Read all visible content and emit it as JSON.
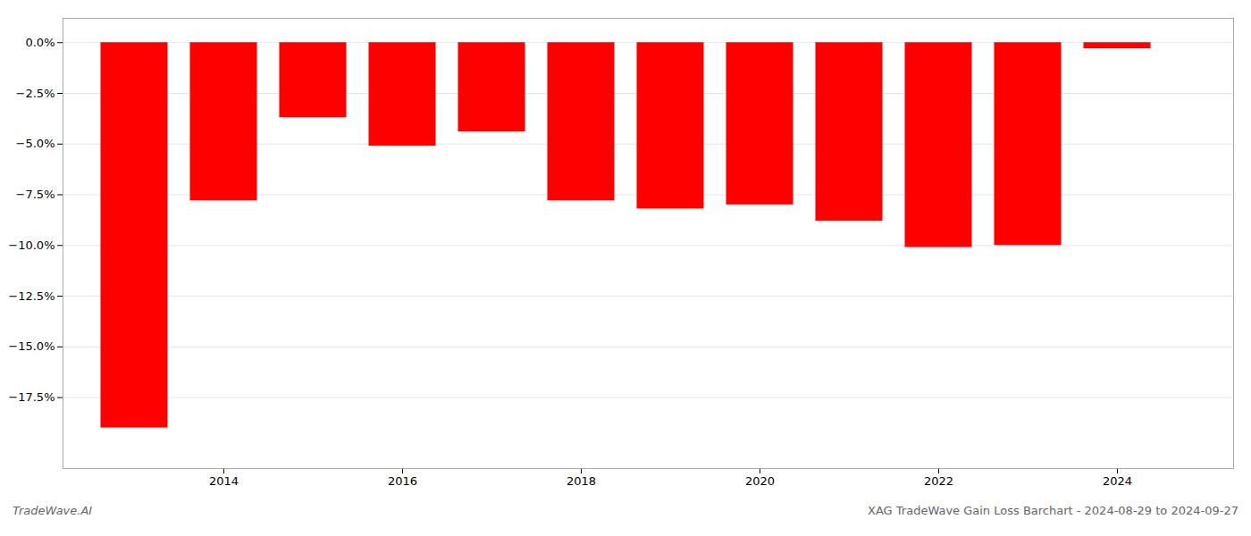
{
  "chart_data": {
    "type": "bar",
    "x": [
      2013,
      2014,
      2015,
      2016,
      2017,
      2018,
      2019,
      2020,
      2021,
      2022,
      2023,
      2024
    ],
    "values": [
      -19.0,
      -7.8,
      -3.7,
      -5.1,
      -4.4,
      -7.8,
      -8.2,
      -8.0,
      -8.8,
      -10.1,
      -10.0,
      -0.3
    ],
    "color": "#ff0000",
    "xlim": [
      2012.2,
      2025.3
    ],
    "xticks": [
      2014,
      2016,
      2018,
      2020,
      2022,
      2024
    ],
    "ylim": [
      -21.0,
      1.2
    ],
    "yticks": [
      {
        "value": 0.0,
        "label": "0.0%"
      },
      {
        "value": -2.5,
        "label": "−2.5%"
      },
      {
        "value": -5.0,
        "label": "−5.0%"
      },
      {
        "value": -7.5,
        "label": "−7.5%"
      },
      {
        "value": -10.0,
        "label": "−10.0%"
      },
      {
        "value": -12.5,
        "label": "−12.5%"
      },
      {
        "value": -15.0,
        "label": "−15.0%"
      },
      {
        "value": -17.5,
        "label": "−17.5%"
      }
    ],
    "grid": "y",
    "annotations": [
      "TradeWave.AI",
      "XAG TradeWave Gain Loss Barchart - 2024-08-29 to 2024-09-27"
    ]
  }
}
